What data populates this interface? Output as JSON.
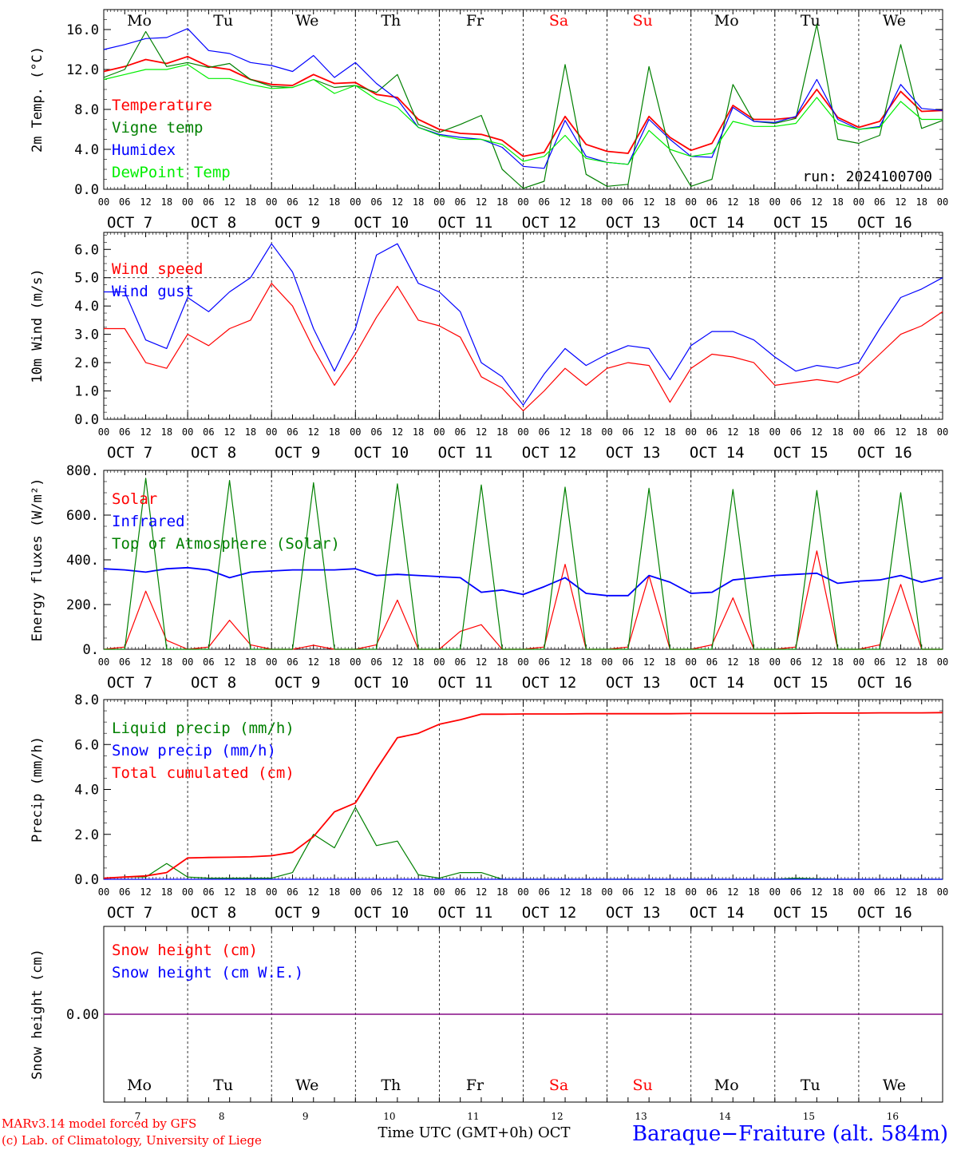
{
  "days": {
    "names": [
      "Mo",
      "Tu",
      "We",
      "Th",
      "Fr",
      "Sa",
      "Su",
      "Mo",
      "Tu",
      "We"
    ],
    "weekend": [
      false,
      false,
      false,
      false,
      false,
      true,
      true,
      false,
      false,
      false
    ],
    "date_labels": [
      "OCT  7",
      "OCT  8",
      "OCT  9",
      "OCT 10",
      "OCT 11",
      "OCT 12",
      "OCT 13",
      "OCT 14",
      "OCT 15",
      "OCT 16"
    ],
    "numbers": [
      "7",
      "8",
      "9",
      "10",
      "11",
      "12",
      "13",
      "14",
      "15",
      "16"
    ],
    "hour_ticks": [
      "00",
      "06",
      "12",
      "18"
    ],
    "end_tick": "00"
  },
  "colors": {
    "red": "#ff0000",
    "green": "#008000",
    "blue": "#0000ff",
    "lime": "#00ee00",
    "purple": "#800080"
  },
  "footer": {
    "model_line1": "MARv3.14 model forced by GFS",
    "model_line2": "(c) Lab. of Climatology, University of Liege",
    "xlabel": "Time UTC (GMT+0h) OCT",
    "station": "Baraque−Fraiture (alt. 584m)"
  },
  "chart_data": [
    {
      "type": "line",
      "ylabel": "2m Temp. (°C)",
      "ylim": [
        0,
        18
      ],
      "yticks": [
        0,
        4,
        8,
        12,
        16
      ],
      "ytick_labels": [
        "0.0",
        "4.0",
        "8.0",
        "12.0",
        "16.0"
      ],
      "run_label": "run: 2024100700",
      "x": [
        0,
        6,
        12,
        18,
        24,
        30,
        36,
        42,
        48,
        54,
        60,
        66,
        72,
        78,
        84,
        90,
        96,
        102,
        108,
        114,
        120,
        126,
        132,
        138,
        144,
        150,
        156,
        162,
        168,
        174,
        180,
        186,
        192,
        198,
        204,
        210,
        216,
        222,
        228,
        234,
        240
      ],
      "series": [
        {
          "name": "Temperature",
          "color": "red",
          "values": [
            11.8,
            12.3,
            13.0,
            12.6,
            13.3,
            12.3,
            12.0,
            11.0,
            10.5,
            10.4,
            11.5,
            10.6,
            10.7,
            9.5,
            9.2,
            7.0,
            6.0,
            5.6,
            5.5,
            4.9,
            3.3,
            3.7,
            7.3,
            4.5,
            3.8,
            3.6,
            7.3,
            5.2,
            3.9,
            4.6,
            8.4,
            7.0,
            7.0,
            7.2,
            10.0,
            7.2,
            6.2,
            6.8,
            9.8,
            7.8,
            7.9
          ]
        },
        {
          "name": "Vigne temp",
          "color": "green",
          "values": [
            11.2,
            12.0,
            15.8,
            12.3,
            12.7,
            12.2,
            12.6,
            11.0,
            10.3,
            10.2,
            11.0,
            10.2,
            10.4,
            9.7,
            11.5,
            6.5,
            5.7,
            6.5,
            7.4,
            2.0,
            0.1,
            0.8,
            12.5,
            1.5,
            0.3,
            0.5,
            12.3,
            3.8,
            0.3,
            1.0,
            10.5,
            6.8,
            6.6,
            7.1,
            16.5,
            5.0,
            4.6,
            5.4,
            14.5,
            6.1,
            6.9
          ]
        },
        {
          "name": "Humidex",
          "color": "blue",
          "values": [
            14.0,
            14.5,
            15.1,
            15.2,
            16.1,
            13.9,
            13.6,
            12.7,
            12.4,
            11.8,
            13.4,
            11.2,
            12.7,
            10.6,
            9.0,
            6.2,
            5.5,
            5.2,
            5.0,
            4.2,
            2.3,
            2.1,
            6.9,
            3.3,
            2.7,
            2.5,
            7.0,
            5.0,
            3.3,
            3.2,
            8.2,
            6.8,
            6.7,
            7.3,
            11.0,
            7.0,
            6.0,
            6.3,
            10.5,
            8.1,
            7.9
          ]
        },
        {
          "name": "DewPoint Temp",
          "color": "lime",
          "values": [
            11.0,
            11.5,
            12.0,
            12.0,
            12.5,
            11.1,
            11.1,
            10.5,
            10.1,
            10.2,
            11.0,
            9.6,
            10.4,
            9.0,
            8.2,
            6.2,
            5.4,
            5.0,
            5.0,
            4.5,
            2.8,
            3.3,
            5.4,
            3.1,
            2.7,
            2.5,
            5.9,
            4.0,
            3.3,
            3.6,
            6.8,
            6.3,
            6.3,
            6.6,
            9.2,
            6.6,
            6.0,
            6.2,
            8.8,
            7.0,
            7.0
          ]
        }
      ]
    },
    {
      "type": "line",
      "ylabel": "10m Wind (m/s)",
      "ylim": [
        0,
        6.6
      ],
      "yticks": [
        0,
        1,
        2,
        3,
        4,
        5,
        6
      ],
      "ytick_labels": [
        "0.0",
        "1.0",
        "2.0",
        "3.0",
        "4.0",
        "5.0",
        "6.0"
      ],
      "reference_line": 5.0,
      "x": [
        0,
        6,
        12,
        18,
        24,
        30,
        36,
        42,
        48,
        54,
        60,
        66,
        72,
        78,
        84,
        90,
        96,
        102,
        108,
        114,
        120,
        126,
        132,
        138,
        144,
        150,
        156,
        162,
        168,
        174,
        180,
        186,
        192,
        198,
        204,
        210,
        216,
        222,
        228,
        234,
        240
      ],
      "series": [
        {
          "name": "Wind speed",
          "color": "red",
          "values": [
            3.2,
            3.2,
            2.0,
            1.8,
            3.0,
            2.6,
            3.2,
            3.5,
            4.8,
            4.0,
            2.5,
            1.2,
            2.3,
            3.6,
            4.7,
            3.5,
            3.3,
            2.9,
            1.5,
            1.1,
            0.3,
            1.0,
            1.8,
            1.2,
            1.8,
            2.0,
            1.9,
            0.6,
            1.8,
            2.3,
            2.2,
            2.0,
            1.2,
            1.3,
            1.4,
            1.3,
            1.6,
            2.3,
            3.0,
            3.3,
            3.8
          ]
        },
        {
          "name": "Wind gust",
          "color": "blue",
          "values": [
            4.5,
            4.5,
            2.8,
            2.5,
            4.3,
            3.8,
            4.5,
            5.0,
            6.2,
            5.2,
            3.2,
            1.7,
            3.2,
            5.8,
            6.2,
            4.8,
            4.5,
            3.8,
            2.0,
            1.5,
            0.5,
            1.6,
            2.5,
            1.9,
            2.3,
            2.6,
            2.5,
            1.4,
            2.6,
            3.1,
            3.1,
            2.8,
            2.2,
            1.7,
            1.9,
            1.8,
            2.0,
            3.2,
            4.3,
            4.6,
            5.0
          ]
        }
      ]
    },
    {
      "type": "line",
      "ylabel": "Energy fluxes (W/m²)",
      "ylim": [
        0,
        800
      ],
      "yticks": [
        0,
        200,
        400,
        600,
        800
      ],
      "ytick_labels": [
        "0.",
        "200.",
        "400.",
        "600.",
        "800."
      ],
      "x": [
        0,
        6,
        12,
        18,
        24,
        30,
        36,
        42,
        48,
        54,
        60,
        66,
        72,
        78,
        84,
        90,
        96,
        102,
        108,
        114,
        120,
        126,
        132,
        138,
        144,
        150,
        156,
        162,
        168,
        174,
        180,
        186,
        192,
        198,
        204,
        210,
        216,
        222,
        228,
        234,
        240
      ],
      "series": [
        {
          "name": "Solar",
          "color": "red",
          "values": [
            0,
            10,
            260,
            40,
            0,
            10,
            130,
            20,
            0,
            0,
            18,
            0,
            0,
            20,
            220,
            0,
            0,
            80,
            110,
            0,
            0,
            10,
            380,
            0,
            0,
            10,
            330,
            0,
            0,
            20,
            230,
            0,
            0,
            10,
            440,
            0,
            0,
            20,
            290,
            0,
            0
          ]
        },
        {
          "name": "Infrared",
          "color": "blue",
          "values": [
            360,
            355,
            345,
            360,
            365,
            355,
            320,
            345,
            350,
            355,
            355,
            355,
            360,
            330,
            335,
            330,
            325,
            320,
            255,
            265,
            245,
            280,
            320,
            250,
            240,
            240,
            330,
            300,
            250,
            255,
            310,
            320,
            330,
            335,
            340,
            295,
            305,
            310,
            330,
            300,
            320
          ]
        },
        {
          "name": "Top of Atmosphere (Solar)",
          "color": "green",
          "values": [
            0,
            0,
            765,
            0,
            0,
            0,
            755,
            0,
            0,
            0,
            745,
            0,
            0,
            0,
            740,
            0,
            0,
            0,
            735,
            0,
            0,
            0,
            725,
            0,
            0,
            0,
            720,
            0,
            0,
            0,
            715,
            0,
            0,
            0,
            710,
            0,
            0,
            0,
            700,
            0,
            0
          ]
        }
      ]
    },
    {
      "type": "line",
      "ylabel": "Precip (mm/h)",
      "ylim": [
        0,
        8
      ],
      "yticks": [
        0,
        2,
        4,
        6,
        8
      ],
      "ytick_labels": [
        "0.0",
        "2.0",
        "4.0",
        "6.0",
        "8.0"
      ],
      "x": [
        0,
        6,
        12,
        18,
        24,
        30,
        36,
        42,
        48,
        54,
        60,
        66,
        72,
        78,
        84,
        90,
        96,
        102,
        108,
        114,
        120,
        126,
        132,
        138,
        144,
        150,
        156,
        162,
        168,
        174,
        180,
        186,
        192,
        198,
        204,
        210,
        216,
        222,
        228,
        234,
        240
      ],
      "series": [
        {
          "name": "Liquid precip (mm/h)",
          "color": "green",
          "values": [
            0.05,
            0.1,
            0.1,
            0.7,
            0.1,
            0.05,
            0.05,
            0.05,
            0.05,
            0.3,
            2.0,
            1.4,
            3.2,
            1.5,
            1.7,
            0.2,
            0.05,
            0.3,
            0.3,
            0,
            0,
            0,
            0,
            0,
            0,
            0,
            0,
            0,
            0,
            0,
            0,
            0,
            0,
            0.05,
            0.02,
            0,
            0,
            0,
            0,
            0,
            0
          ]
        },
        {
          "name": "Snow precip (mm/h)",
          "color": "blue",
          "values": [
            0,
            0,
            0,
            0,
            0,
            0,
            0,
            0,
            0,
            0,
            0,
            0,
            0,
            0,
            0,
            0,
            0,
            0,
            0,
            0,
            0,
            0,
            0,
            0,
            0,
            0,
            0,
            0,
            0,
            0,
            0,
            0,
            0,
            0,
            0,
            0,
            0,
            0,
            0,
            0,
            0
          ]
        },
        {
          "name": "Total cumulated (cm)",
          "color": "red",
          "values": [
            0.05,
            0.1,
            0.15,
            0.3,
            0.95,
            0.97,
            0.98,
            1.0,
            1.05,
            1.2,
            1.9,
            3.0,
            3.4,
            4.9,
            6.3,
            6.5,
            6.9,
            7.1,
            7.35,
            7.35,
            7.36,
            7.36,
            7.36,
            7.37,
            7.37,
            7.37,
            7.37,
            7.37,
            7.38,
            7.38,
            7.38,
            7.38,
            7.38,
            7.39,
            7.4,
            7.4,
            7.4,
            7.41,
            7.41,
            7.41,
            7.42
          ]
        }
      ]
    },
    {
      "type": "line",
      "ylabel": "Snow height (cm)",
      "ylim": [
        -1,
        1
      ],
      "yticks": [
        0
      ],
      "ytick_labels": [
        "0.00"
      ],
      "x": [
        0,
        240
      ],
      "series": [
        {
          "name": "Snow height (cm)",
          "color": "red",
          "values": [
            0,
            0
          ]
        },
        {
          "name": "Snow height (cm W.E.)",
          "color": "blue",
          "values": [
            0,
            0
          ]
        }
      ]
    }
  ]
}
